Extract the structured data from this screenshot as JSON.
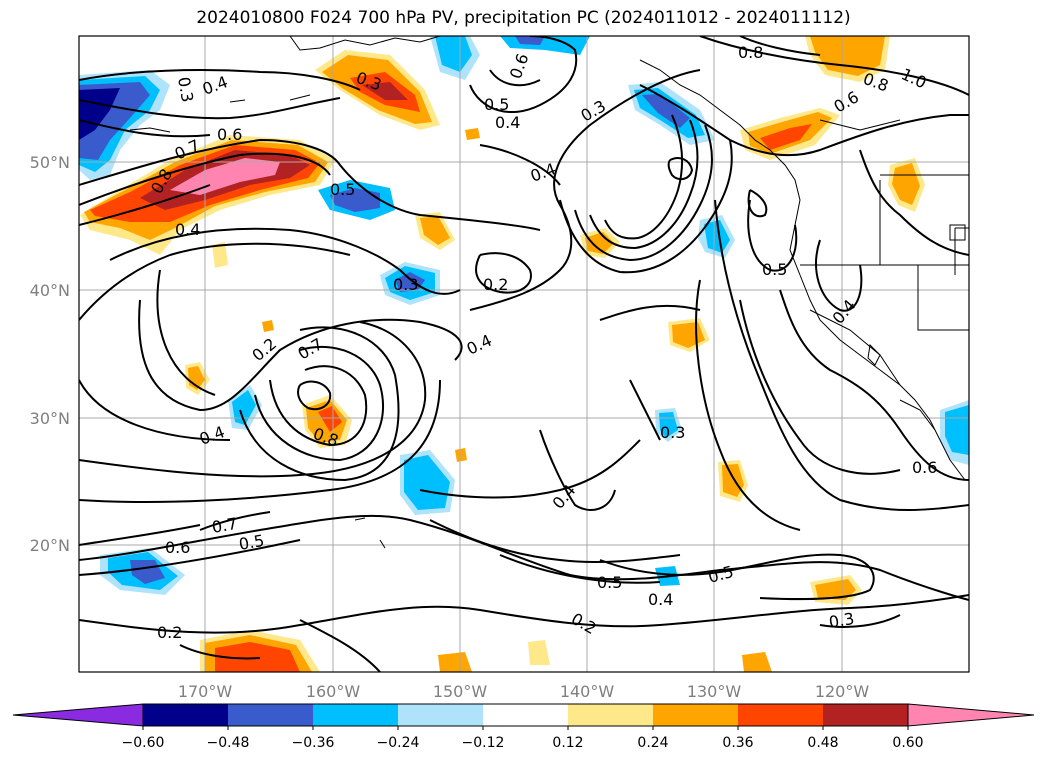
{
  "title": "2024010800 F024 700 hPa PV, precipitation PC (2024011012 - 2024011112)",
  "map": {
    "lat_labels": [
      "50°N",
      "40°N",
      "30°N",
      "20°N"
    ],
    "lon_labels": [
      "170°W",
      "160°W",
      "150°W",
      "140°W",
      "130°W",
      "120°W"
    ],
    "contour_labels": [
      "0.3",
      "0.4",
      "0.6",
      "0.7",
      "0.8",
      "0.3",
      "0.5",
      "0.4",
      "0.6",
      "0.3",
      "0.5",
      "0.4",
      "0.8",
      "1.0",
      "0.8",
      "0.6",
      "0.4",
      "0.5",
      "0.3",
      "0.2",
      "0.4",
      "0.2",
      "0.7",
      "0.8",
      "0.4",
      "0.6",
      "0.7",
      "0.5",
      "0.4",
      "0.5",
      "0.4",
      "0.2",
      "0.3",
      "0.3",
      "0.6",
      "0.4",
      "0.5",
      "0.2"
    ]
  },
  "colorbar": {
    "ticks": [
      "−0.60",
      "−0.48",
      "−0.36",
      "−0.24",
      "−0.12",
      "0.12",
      "0.24",
      "0.36",
      "0.48",
      "0.60"
    ],
    "colors": [
      "#8a2be2",
      "#00008b",
      "#3a5bcc",
      "#00bfff",
      "#aee3fb",
      "#ffffff",
      "#ffe88a",
      "#ffa500",
      "#ff4500",
      "#b22222",
      "#ff85b0"
    ]
  }
}
